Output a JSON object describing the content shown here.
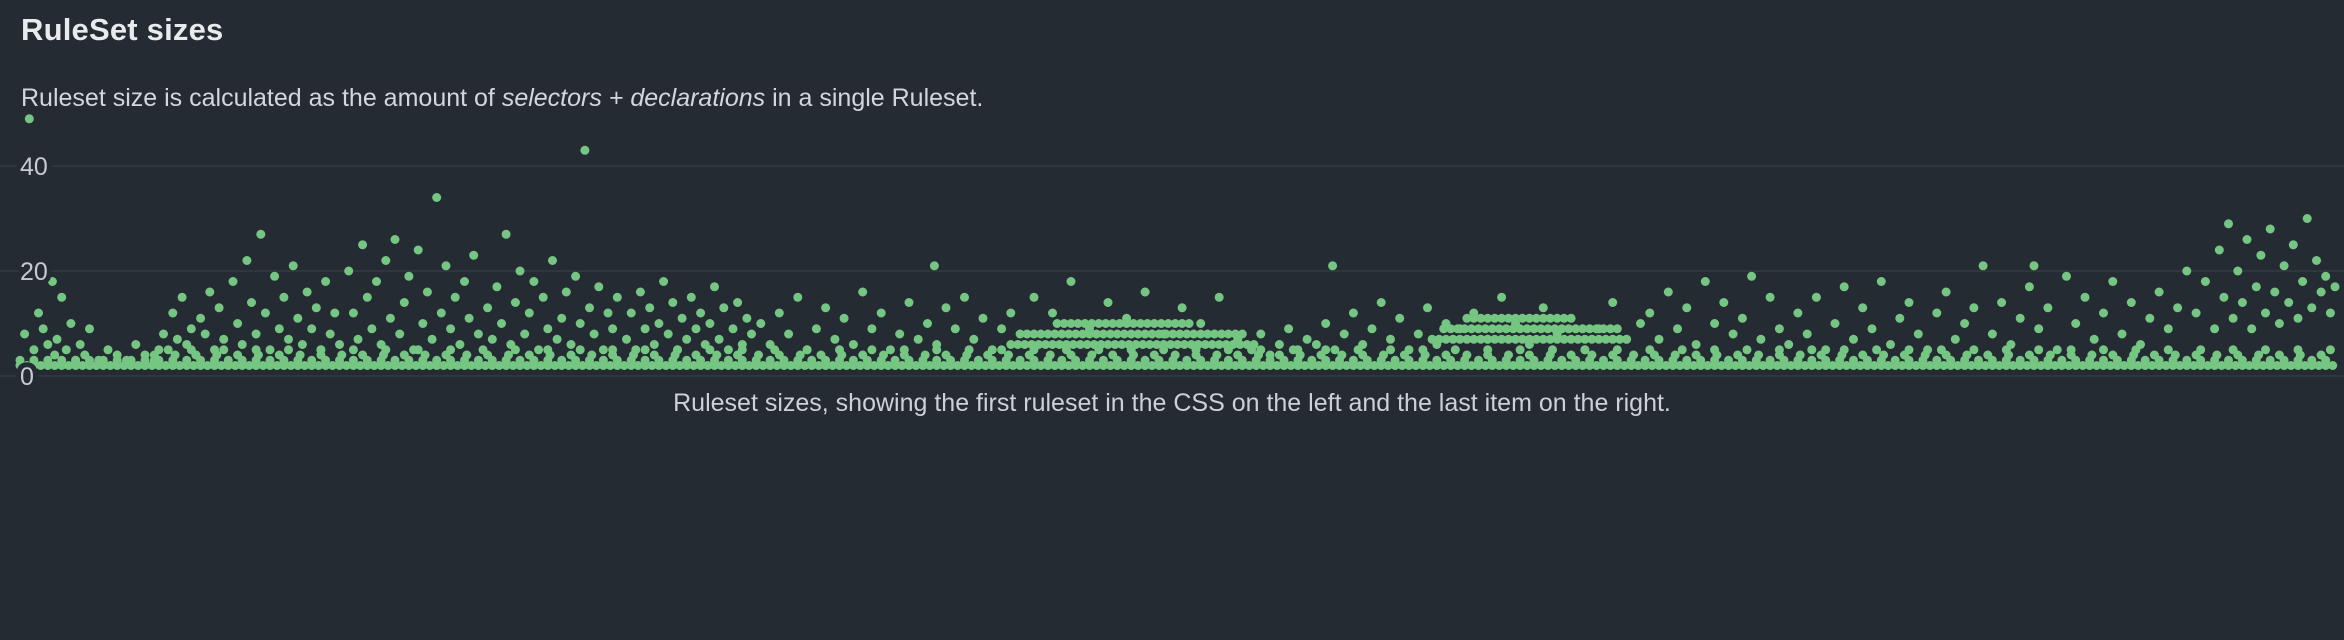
{
  "header": {
    "title": "RuleSet sizes"
  },
  "subtitle": {
    "prefix": "Ruleset size is calculated as the amount of ",
    "italic": "selectors + declarations",
    "suffix": " in a single Ruleset."
  },
  "chart_data": {
    "type": "scatter",
    "title": "RuleSet sizes",
    "caption": "Ruleset sizes, showing the first ruleset in the CSS on the left and the last item on the right.",
    "xlabel": "",
    "ylabel": "",
    "x_axis": "ruleset order, first ruleset on the left to last on the right (normalized 0-1000)",
    "xlim": [
      0,
      1000
    ],
    "ylim": [
      0,
      52
    ],
    "yticks": [
      0,
      20,
      40
    ],
    "grid": true,
    "legend": false,
    "background": "#252b33",
    "dot_color": "#76c683",
    "grid_color": "#3a414a",
    "tick_color": "#c6cbd0",
    "runs": [
      {
        "y": 2,
        "x0": 0,
        "x1": 1000,
        "step": 3
      },
      {
        "y": 3,
        "x0": 0,
        "x1": 1000,
        "step": 6
      },
      {
        "y": 4,
        "x0": 58,
        "x1": 1000,
        "step": 9
      },
      {
        "y": 5,
        "x0": 60,
        "x1": 998,
        "step": 14
      },
      {
        "y": 6,
        "x0": 428,
        "x1": 535,
        "step": 3
      },
      {
        "y": 8,
        "x0": 432,
        "x1": 528,
        "step": 3
      },
      {
        "y": 10,
        "x0": 448,
        "x1": 505,
        "step": 3
      },
      {
        "y": 7,
        "x0": 610,
        "x1": 695,
        "step": 3
      },
      {
        "y": 9,
        "x0": 615,
        "x1": 690,
        "step": 3
      },
      {
        "y": 11,
        "x0": 625,
        "x1": 668,
        "step": 3
      }
    ],
    "points": [
      [
        2,
        8
      ],
      [
        4,
        49
      ],
      [
        6,
        5
      ],
      [
        8,
        12
      ],
      [
        10,
        9
      ],
      [
        12,
        6
      ],
      [
        14,
        18
      ],
      [
        15,
        4
      ],
      [
        16,
        7
      ],
      [
        18,
        15
      ],
      [
        20,
        5
      ],
      [
        22,
        10
      ],
      [
        24,
        3
      ],
      [
        26,
        6
      ],
      [
        28,
        4
      ],
      [
        30,
        9
      ],
      [
        34,
        3
      ],
      [
        38,
        5
      ],
      [
        42,
        4
      ],
      [
        46,
        3
      ],
      [
        50,
        6
      ],
      [
        54,
        4
      ],
      [
        58,
        3
      ],
      [
        62,
        8
      ],
      [
        64,
        5
      ],
      [
        66,
        12
      ],
      [
        68,
        7
      ],
      [
        70,
        15
      ],
      [
        72,
        6
      ],
      [
        74,
        9
      ],
      [
        76,
        4
      ],
      [
        78,
        11
      ],
      [
        80,
        8
      ],
      [
        82,
        16
      ],
      [
        84,
        5
      ],
      [
        86,
        13
      ],
      [
        88,
        7
      ],
      [
        92,
        18
      ],
      [
        94,
        10
      ],
      [
        96,
        6
      ],
      [
        98,
        22
      ],
      [
        100,
        14
      ],
      [
        102,
        8
      ],
      [
        104,
        27
      ],
      [
        106,
        12
      ],
      [
        108,
        5
      ],
      [
        110,
        19
      ],
      [
        112,
        9
      ],
      [
        114,
        15
      ],
      [
        116,
        7
      ],
      [
        118,
        21
      ],
      [
        120,
        11
      ],
      [
        122,
        6
      ],
      [
        124,
        16
      ],
      [
        126,
        9
      ],
      [
        128,
        13
      ],
      [
        130,
        5
      ],
      [
        132,
        18
      ],
      [
        134,
        8
      ],
      [
        136,
        12
      ],
      [
        138,
        6
      ],
      [
        142,
        20
      ],
      [
        144,
        12
      ],
      [
        146,
        7
      ],
      [
        148,
        25
      ],
      [
        150,
        15
      ],
      [
        152,
        9
      ],
      [
        154,
        18
      ],
      [
        156,
        6
      ],
      [
        158,
        22
      ],
      [
        160,
        11
      ],
      [
        162,
        26
      ],
      [
        164,
        8
      ],
      [
        166,
        14
      ],
      [
        168,
        19
      ],
      [
        170,
        5
      ],
      [
        172,
        24
      ],
      [
        174,
        10
      ],
      [
        176,
        16
      ],
      [
        178,
        7
      ],
      [
        180,
        34
      ],
      [
        182,
        12
      ],
      [
        184,
        21
      ],
      [
        186,
        9
      ],
      [
        188,
        15
      ],
      [
        190,
        6
      ],
      [
        192,
        18
      ],
      [
        194,
        11
      ],
      [
        196,
        23
      ],
      [
        198,
        8
      ],
      [
        202,
        13
      ],
      [
        204,
        7
      ],
      [
        206,
        17
      ],
      [
        208,
        10
      ],
      [
        210,
        27
      ],
      [
        212,
        6
      ],
      [
        214,
        14
      ],
      [
        216,
        20
      ],
      [
        218,
        8
      ],
      [
        220,
        12
      ],
      [
        222,
        18
      ],
      [
        224,
        5
      ],
      [
        226,
        15
      ],
      [
        228,
        9
      ],
      [
        230,
        22
      ],
      [
        232,
        7
      ],
      [
        234,
        11
      ],
      [
        236,
        16
      ],
      [
        238,
        6
      ],
      [
        240,
        19
      ],
      [
        242,
        10
      ],
      [
        244,
        43
      ],
      [
        246,
        13
      ],
      [
        248,
        8
      ],
      [
        250,
        17
      ],
      [
        252,
        5
      ],
      [
        254,
        12
      ],
      [
        256,
        9
      ],
      [
        258,
        15
      ],
      [
        262,
        7
      ],
      [
        264,
        12
      ],
      [
        266,
        5
      ],
      [
        268,
        16
      ],
      [
        270,
        9
      ],
      [
        272,
        13
      ],
      [
        274,
        6
      ],
      [
        276,
        10
      ],
      [
        278,
        18
      ],
      [
        280,
        8
      ],
      [
        282,
        14
      ],
      [
        284,
        5
      ],
      [
        286,
        11
      ],
      [
        288,
        7
      ],
      [
        290,
        15
      ],
      [
        292,
        9
      ],
      [
        294,
        12
      ],
      [
        296,
        6
      ],
      [
        298,
        10
      ],
      [
        300,
        17
      ],
      [
        302,
        7
      ],
      [
        304,
        13
      ],
      [
        306,
        5
      ],
      [
        308,
        9
      ],
      [
        310,
        14
      ],
      [
        312,
        6
      ],
      [
        314,
        11
      ],
      [
        316,
        8
      ],
      [
        320,
        10
      ],
      [
        324,
        6
      ],
      [
        328,
        12
      ],
      [
        332,
        8
      ],
      [
        336,
        15
      ],
      [
        340,
        5
      ],
      [
        344,
        9
      ],
      [
        348,
        13
      ],
      [
        352,
        7
      ],
      [
        356,
        11
      ],
      [
        360,
        6
      ],
      [
        364,
        16
      ],
      [
        368,
        9
      ],
      [
        372,
        12
      ],
      [
        376,
        5
      ],
      [
        380,
        8
      ],
      [
        384,
        14
      ],
      [
        388,
        7
      ],
      [
        392,
        10
      ],
      [
        395,
        21
      ],
      [
        396,
        6
      ],
      [
        400,
        13
      ],
      [
        404,
        9
      ],
      [
        408,
        15
      ],
      [
        412,
        7
      ],
      [
        416,
        11
      ],
      [
        420,
        5
      ],
      [
        424,
        9
      ],
      [
        428,
        12
      ],
      [
        438,
        15
      ],
      [
        446,
        12
      ],
      [
        454,
        18
      ],
      [
        462,
        9
      ],
      [
        470,
        14
      ],
      [
        478,
        11
      ],
      [
        486,
        16
      ],
      [
        494,
        8
      ],
      [
        502,
        13
      ],
      [
        510,
        10
      ],
      [
        518,
        15
      ],
      [
        526,
        7
      ],
      [
        532,
        5
      ],
      [
        536,
        8
      ],
      [
        540,
        4
      ],
      [
        544,
        6
      ],
      [
        548,
        9
      ],
      [
        552,
        5
      ],
      [
        556,
        7
      ],
      [
        560,
        6
      ],
      [
        564,
        10
      ],
      [
        567,
        21
      ],
      [
        568,
        5
      ],
      [
        572,
        8
      ],
      [
        576,
        12
      ],
      [
        580,
        6
      ],
      [
        584,
        9
      ],
      [
        588,
        14
      ],
      [
        592,
        7
      ],
      [
        596,
        11
      ],
      [
        600,
        5
      ],
      [
        604,
        8
      ],
      [
        608,
        13
      ],
      [
        612,
        6
      ],
      [
        616,
        10
      ],
      [
        622,
        9
      ],
      [
        628,
        12
      ],
      [
        634,
        7
      ],
      [
        640,
        15
      ],
      [
        646,
        10
      ],
      [
        652,
        6
      ],
      [
        658,
        13
      ],
      [
        664,
        8
      ],
      [
        670,
        11
      ],
      [
        676,
        5
      ],
      [
        682,
        9
      ],
      [
        688,
        14
      ],
      [
        694,
        7
      ],
      [
        700,
        10
      ],
      [
        704,
        12
      ],
      [
        708,
        7
      ],
      [
        712,
        16
      ],
      [
        716,
        9
      ],
      [
        720,
        13
      ],
      [
        724,
        6
      ],
      [
        728,
        18
      ],
      [
        732,
        10
      ],
      [
        736,
        14
      ],
      [
        740,
        8
      ],
      [
        744,
        11
      ],
      [
        748,
        19
      ],
      [
        752,
        7
      ],
      [
        756,
        15
      ],
      [
        760,
        9
      ],
      [
        764,
        6
      ],
      [
        768,
        12
      ],
      [
        772,
        8
      ],
      [
        776,
        15
      ],
      [
        780,
        5
      ],
      [
        784,
        10
      ],
      [
        788,
        17
      ],
      [
        792,
        7
      ],
      [
        796,
        13
      ],
      [
        800,
        9
      ],
      [
        804,
        18
      ],
      [
        808,
        6
      ],
      [
        812,
        11
      ],
      [
        816,
        14
      ],
      [
        820,
        8
      ],
      [
        824,
        5
      ],
      [
        828,
        12
      ],
      [
        832,
        16
      ],
      [
        836,
        7
      ],
      [
        840,
        10
      ],
      [
        844,
        13
      ],
      [
        848,
        21
      ],
      [
        852,
        8
      ],
      [
        856,
        14
      ],
      [
        860,
        6
      ],
      [
        864,
        11
      ],
      [
        868,
        17
      ],
      [
        870,
        21
      ],
      [
        872,
        9
      ],
      [
        876,
        13
      ],
      [
        880,
        5
      ],
      [
        884,
        19
      ],
      [
        888,
        10
      ],
      [
        892,
        15
      ],
      [
        896,
        7
      ],
      [
        900,
        12
      ],
      [
        904,
        18
      ],
      [
        908,
        8
      ],
      [
        912,
        14
      ],
      [
        916,
        6
      ],
      [
        920,
        11
      ],
      [
        924,
        16
      ],
      [
        928,
        9
      ],
      [
        932,
        13
      ],
      [
        936,
        20
      ],
      [
        940,
        12
      ],
      [
        944,
        18
      ],
      [
        948,
        9
      ],
      [
        950,
        24
      ],
      [
        952,
        15
      ],
      [
        954,
        29
      ],
      [
        956,
        11
      ],
      [
        958,
        20
      ],
      [
        960,
        14
      ],
      [
        962,
        26
      ],
      [
        964,
        9
      ],
      [
        966,
        17
      ],
      [
        968,
        23
      ],
      [
        970,
        12
      ],
      [
        972,
        28
      ],
      [
        974,
        16
      ],
      [
        976,
        10
      ],
      [
        978,
        21
      ],
      [
        980,
        14
      ],
      [
        982,
        25
      ],
      [
        984,
        11
      ],
      [
        986,
        18
      ],
      [
        988,
        30
      ],
      [
        990,
        13
      ],
      [
        992,
        22
      ],
      [
        994,
        16
      ],
      [
        996,
        19
      ],
      [
        998,
        12
      ],
      [
        1000,
        17
      ]
    ]
  }
}
